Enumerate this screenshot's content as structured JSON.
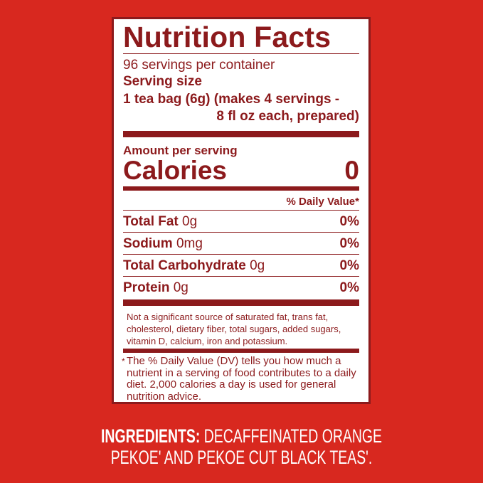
{
  "label": {
    "title": "Nutrition Facts",
    "servings_per_container": "96 servings per container",
    "serving_size_label": "Serving size",
    "serving_size_line1": "1 tea bag (6g) (makes 4 servings -",
    "serving_size_line2": "8 fl oz each, prepared)",
    "amount_per_serving": "Amount per serving",
    "calories_label": "Calories",
    "calories_value": "0",
    "daily_value_header": "% Daily Value*",
    "nutrients": [
      {
        "name": "Total Fat",
        "amount": "0g",
        "dv": "0%"
      },
      {
        "name": "Sodium",
        "amount": "0mg",
        "dv": "0%"
      },
      {
        "name": "Total Carbohydrate",
        "amount": "0g",
        "dv": "0%"
      },
      {
        "name": "Protein",
        "amount": "0g",
        "dv": "0%"
      }
    ],
    "not_significant": "Not a significant source of saturated fat, trans fat, cholesterol, dietary fiber, total sugars, added sugars, vitamin D, calcium, iron and potassium.",
    "dv_footnote_star": "*",
    "dv_footnote": "The % Daily Value (DV) tells you how much a nutrient in a serving of food contributes to a daily diet. 2,000 calories a day is used for general nutrition advice."
  },
  "ingredients": {
    "label": "INGREDIENTS:",
    "line1": "DECAFFEINATED ORANGE",
    "line2": "PEKOE' AND PEKOE CUT BLACK TEAS'."
  },
  "colors": {
    "background": "#d8281f",
    "label_text": "#8c1a1c",
    "label_bg": "#ffffff"
  }
}
